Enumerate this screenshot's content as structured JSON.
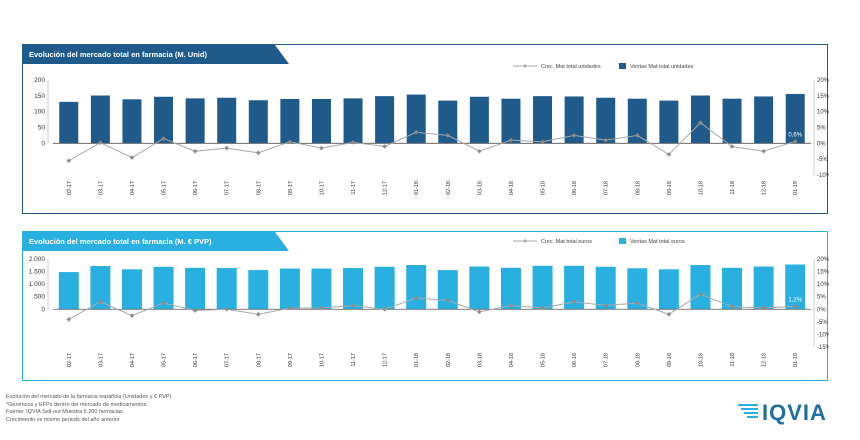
{
  "colors": {
    "units": "#1f5a8a",
    "euros": "#29b0e0",
    "growth_line": "#a8a8a8"
  },
  "charts": [
    {
      "title": "Evolución del mercado total en farmacia (M. Unid)",
      "legend_line": "Crec. Mat total unidades",
      "legend_bar": "Ventas Mat total unidades",
      "last_label": "0,6%"
    },
    {
      "title": "Evolución del mercado total en farmacia (M. € PVP)",
      "legend_line": "Crec. Mat total euros",
      "legend_bar": "Ventas Mat total euros",
      "last_label": "1,2%"
    }
  ],
  "chart_data": [
    {
      "type": "bar",
      "title": "Evolución del mercado total en farmacia (M. Unid)",
      "categories": [
        "02-17",
        "03-17",
        "04-17",
        "05-17",
        "06-17",
        "07-17",
        "08-17",
        "09-17",
        "10-17",
        "11-17",
        "12-17",
        "01-18",
        "02-18",
        "03-18",
        "04-18",
        "05-18",
        "06-18",
        "07-18",
        "08-18",
        "09-18",
        "10-18",
        "11-18",
        "12-18",
        "01-19"
      ],
      "series": [
        {
          "name": "Ventas Mat total unidades",
          "type": "bar",
          "axis": "left",
          "values": [
            131,
            151,
            139,
            147,
            142,
            144,
            136,
            140,
            140,
            142,
            149,
            154,
            135,
            147,
            141,
            149,
            148,
            144,
            141,
            135,
            151,
            141,
            148,
            156
          ]
        },
        {
          "name": "Crec. Mat total unidades",
          "type": "line",
          "axis": "right",
          "values": [
            -5.5,
            0.2,
            -4.5,
            1.5,
            -2.5,
            -1.5,
            -3,
            0.5,
            -1.5,
            0.3,
            -1,
            3.5,
            2.5,
            -2.5,
            1,
            0.5,
            2.5,
            1,
            2.5,
            -3.5,
            6.5,
            -1,
            -2.5,
            0.6
          ]
        }
      ],
      "ylim_left": [
        -100,
        200
      ],
      "yticks_left": [
        0,
        50,
        100,
        150,
        200
      ],
      "ylim_right": [
        -10,
        20
      ],
      "yticks_right": [
        -10,
        -5,
        0,
        5,
        10,
        15,
        20
      ],
      "ytick_labels_left": [
        "0",
        "50",
        "100",
        "150",
        "200"
      ],
      "ytick_labels_right": [
        "-10%",
        "-5%",
        "0%",
        "5%",
        "10%",
        "15%",
        "20%"
      ]
    },
    {
      "type": "bar",
      "title": "Evolución del mercado total en farmacia (M. € PVP)",
      "categories": [
        "02-17",
        "03-17",
        "04-17",
        "05-17",
        "06-17",
        "07-17",
        "08-17",
        "09-17",
        "10-17",
        "11-17",
        "12-17",
        "01-18",
        "02-18",
        "03-18",
        "04-18",
        "05-18",
        "06-18",
        "07-18",
        "08-18",
        "09-18",
        "10-18",
        "11-18",
        "12-18",
        "01-19"
      ],
      "series": [
        {
          "name": "Ventas Mat total euros",
          "type": "bar",
          "axis": "left",
          "values": [
            1480,
            1720,
            1590,
            1690,
            1650,
            1640,
            1560,
            1620,
            1620,
            1640,
            1690,
            1760,
            1560,
            1700,
            1650,
            1730,
            1730,
            1690,
            1630,
            1590,
            1760,
            1650,
            1700,
            1780
          ]
        },
        {
          "name": "Crec. Mat total euros",
          "type": "line",
          "axis": "right",
          "values": [
            -4,
            3,
            -2.5,
            2.5,
            -0.5,
            0,
            -2,
            0.5,
            0.5,
            1.5,
            0,
            4.5,
            3.5,
            -1,
            1.5,
            0.5,
            3,
            1.5,
            2.5,
            -2,
            6,
            1,
            0.5,
            1.2
          ]
        }
      ],
      "ylim_left": [
        -1500,
        2000
      ],
      "yticks_left": [
        0,
        500,
        1000,
        1500,
        2000
      ],
      "ylim_right": [
        -15,
        20
      ],
      "yticks_right": [
        -15,
        -10,
        -5,
        0,
        5,
        10,
        15,
        20
      ],
      "ytick_labels_left": [
        "0",
        "500",
        "1.000",
        "1.500",
        "2.000"
      ],
      "ytick_labels_right": [
        "-15%",
        "-10%",
        "-5%",
        "0%",
        "5%",
        "10%",
        "15%",
        "20%"
      ]
    }
  ],
  "footnotes": [
    "Evolución del mercado de la farmacia española (Unidades y € PVP)",
    "*Genéricos y EFPs dentro del mercado de medicamentos",
    "Fuente: IQVIA Sell-out Muestra 6.200 farmacias",
    "Crecimiento vs mismo periodo del año anterior"
  ],
  "logo": {
    "text": "IQVIA"
  }
}
